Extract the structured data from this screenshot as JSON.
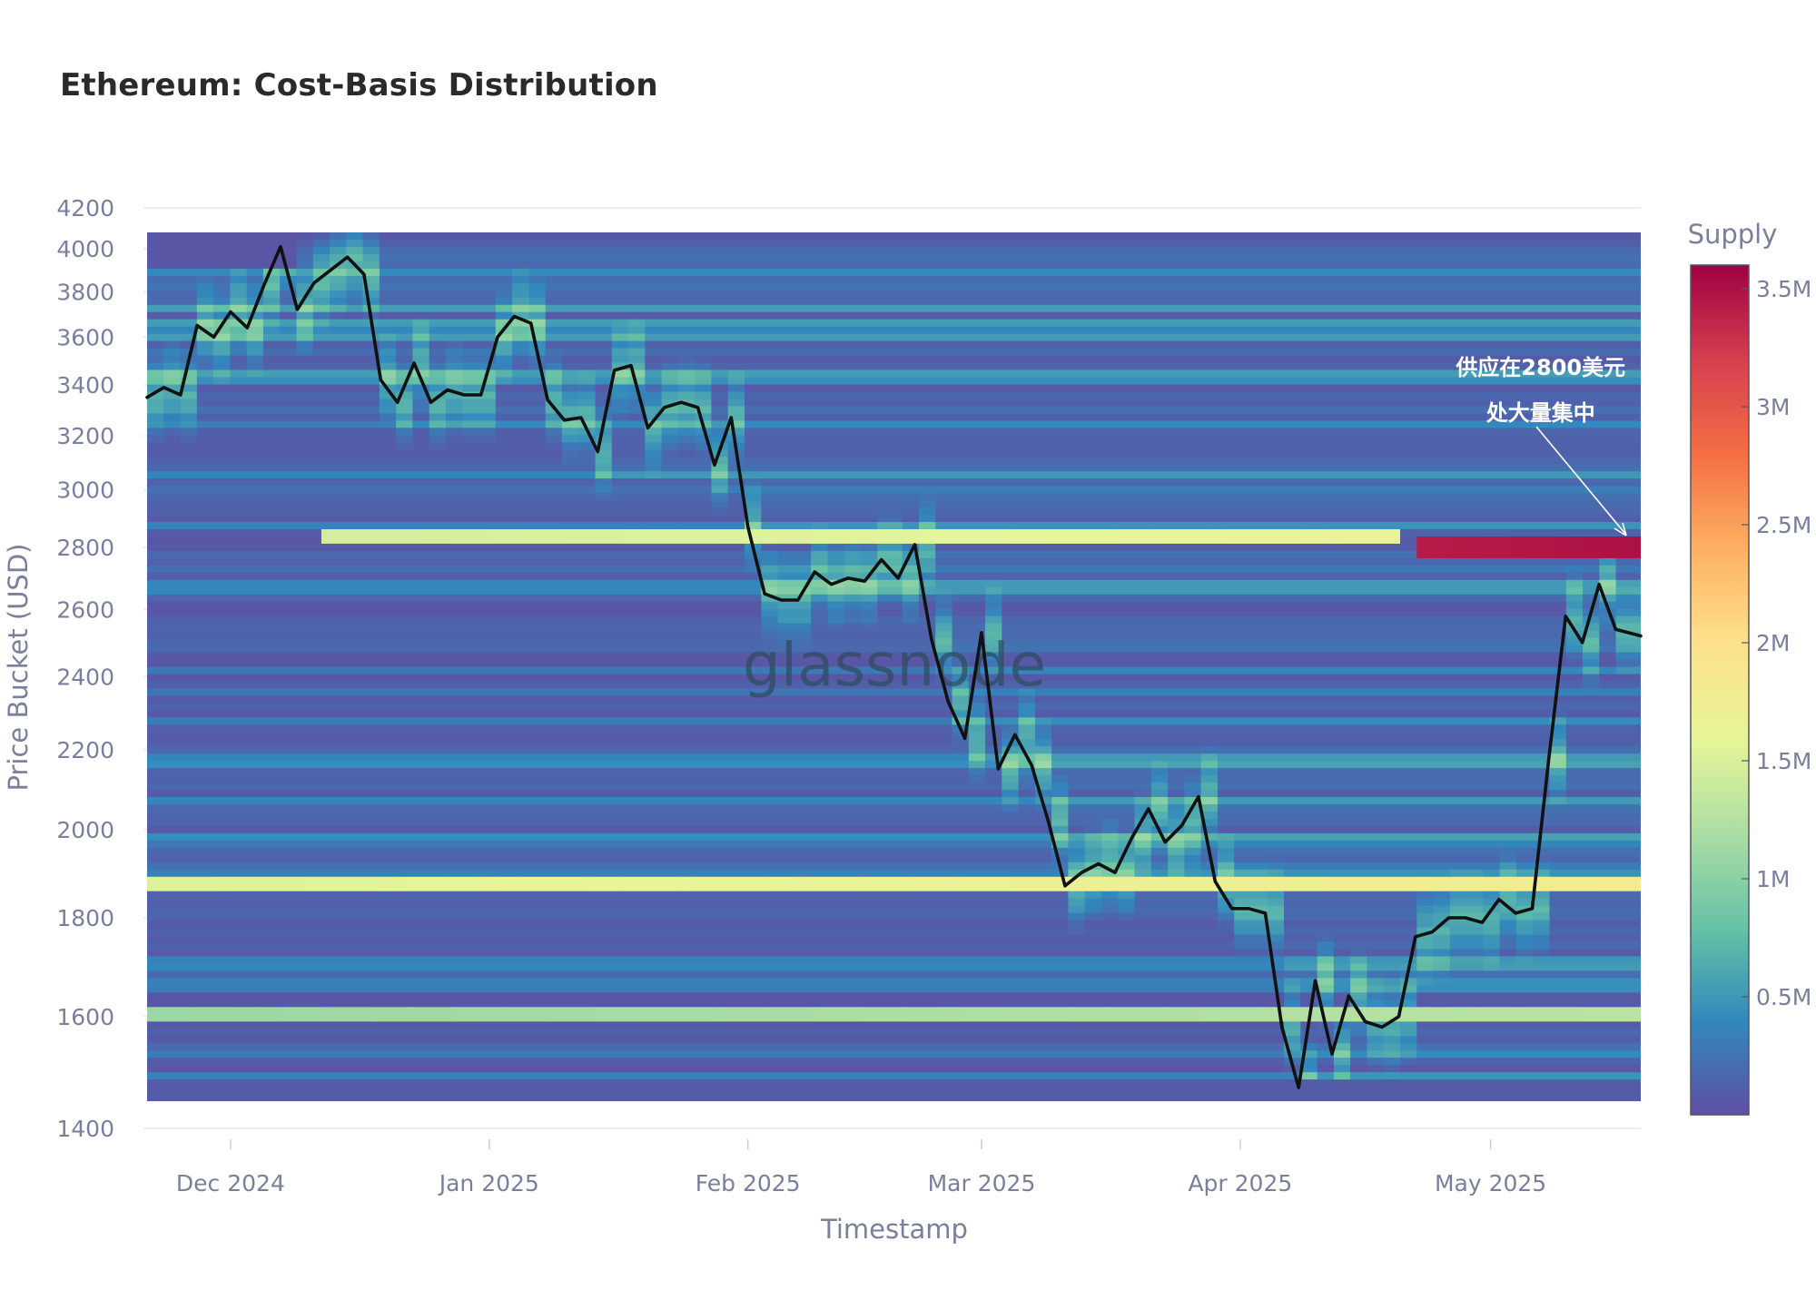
{
  "chart_data": {
    "type": "heatmap",
    "title": "Ethereum: Cost-Basis Distribution",
    "xlabel": "Timestamp",
    "ylabel": "Price Bucket (USD)",
    "y_scale": "log",
    "ylim": [
      1400,
      4200
    ],
    "x_range": [
      "2024-11-21",
      "2025-05-19"
    ],
    "y_ticks": [
      1400,
      1600,
      1800,
      2000,
      2200,
      2400,
      2600,
      2800,
      3000,
      3200,
      3400,
      3600,
      3800,
      4000,
      4200
    ],
    "x_ticks": [
      {
        "date": "2024-12-01",
        "label": "Dec 2024"
      },
      {
        "date": "2025-01-01",
        "label": "Jan 2025"
      },
      {
        "date": "2025-02-01",
        "label": "Feb 2025"
      },
      {
        "date": "2025-03-01",
        "label": "Mar 2025"
      },
      {
        "date": "2025-04-01",
        "label": "Apr 2025"
      },
      {
        "date": "2025-05-01",
        "label": "May 2025"
      }
    ],
    "colorbar": {
      "title": "Supply",
      "colorscale": "Spectral",
      "range": [
        0,
        3600000
      ],
      "ticks": [
        {
          "value": 500000,
          "label": "0.5M"
        },
        {
          "value": 1000000,
          "label": "1M"
        },
        {
          "value": 1500000,
          "label": "1.5M"
        },
        {
          "value": 2000000,
          "label": "2M"
        },
        {
          "value": 2500000,
          "label": "2.5M"
        },
        {
          "value": 3000000,
          "label": "3M"
        },
        {
          "value": 3500000,
          "label": "3.5M"
        }
      ],
      "colors": [
        "#5e4fa2",
        "#3288bd",
        "#66c2a5",
        "#abdda4",
        "#e6f598",
        "#fee08b",
        "#fdae61",
        "#f46d43",
        "#d53e4f",
        "#9e0142"
      ]
    },
    "heatmap_notable_bands": [
      {
        "price": 1880,
        "supply": 1800000,
        "date_from": "2024-11-21",
        "date_to": "2025-05-19"
      },
      {
        "price": 2800,
        "supply": 3500000,
        "date_from": "2025-04-22",
        "date_to": "2025-05-19"
      },
      {
        "price": 2830,
        "supply": 1700000,
        "date_from": "2024-12-12",
        "date_to": "2025-04-20"
      },
      {
        "price": 1600,
        "supply": 1300000,
        "date_from": "2024-11-21",
        "date_to": "2025-05-19"
      }
    ],
    "series": [
      {
        "type": "line",
        "color": "#111111",
        "x": [
          "2024-11-21",
          "2024-11-23",
          "2024-11-25",
          "2024-11-27",
          "2024-11-29",
          "2024-12-01",
          "2024-12-03",
          "2024-12-05",
          "2024-12-07",
          "2024-12-09",
          "2024-12-11",
          "2024-12-13",
          "2024-12-15",
          "2024-12-17",
          "2024-12-19",
          "2024-12-21",
          "2024-12-23",
          "2024-12-25",
          "2024-12-27",
          "2024-12-29",
          "2024-12-31",
          "2025-01-02",
          "2025-01-04",
          "2025-01-06",
          "2025-01-08",
          "2025-01-10",
          "2025-01-12",
          "2025-01-14",
          "2025-01-16",
          "2025-01-18",
          "2025-01-20",
          "2025-01-22",
          "2025-01-24",
          "2025-01-26",
          "2025-01-28",
          "2025-01-30",
          "2025-02-01",
          "2025-02-03",
          "2025-02-05",
          "2025-02-07",
          "2025-02-09",
          "2025-02-11",
          "2025-02-13",
          "2025-02-15",
          "2025-02-17",
          "2025-02-19",
          "2025-02-21",
          "2025-02-23",
          "2025-02-25",
          "2025-02-27",
          "2025-03-01",
          "2025-03-03",
          "2025-03-05",
          "2025-03-07",
          "2025-03-09",
          "2025-03-11",
          "2025-03-13",
          "2025-03-15",
          "2025-03-17",
          "2025-03-19",
          "2025-03-21",
          "2025-03-23",
          "2025-03-25",
          "2025-03-27",
          "2025-03-29",
          "2025-03-31",
          "2025-04-02",
          "2025-04-04",
          "2025-04-06",
          "2025-04-08",
          "2025-04-10",
          "2025-04-12",
          "2025-04-14",
          "2025-04-16",
          "2025-04-18",
          "2025-04-20",
          "2025-04-22",
          "2025-04-24",
          "2025-04-26",
          "2025-04-28",
          "2025-04-30",
          "2025-05-02",
          "2025-05-04",
          "2025-05-06",
          "2025-05-08",
          "2025-05-10",
          "2025-05-12",
          "2025-05-14",
          "2025-05-16",
          "2025-05-19"
        ],
        "y": [
          3350,
          3390,
          3360,
          3650,
          3600,
          3710,
          3640,
          3830,
          4010,
          3720,
          3840,
          3900,
          3960,
          3880,
          3420,
          3330,
          3490,
          3330,
          3380,
          3360,
          3360,
          3600,
          3690,
          3660,
          3340,
          3260,
          3270,
          3140,
          3460,
          3480,
          3230,
          3310,
          3330,
          3310,
          3090,
          3270,
          2870,
          2650,
          2630,
          2630,
          2720,
          2680,
          2700,
          2690,
          2760,
          2700,
          2810,
          2510,
          2330,
          2230,
          2530,
          2150,
          2240,
          2160,
          2020,
          1870,
          1900,
          1920,
          1900,
          1980,
          2050,
          1970,
          2010,
          2080,
          1880,
          1820,
          1820,
          1810,
          1580,
          1470,
          1670,
          1530,
          1640,
          1590,
          1580,
          1600,
          1760,
          1770,
          1800,
          1800,
          1790,
          1840,
          1810,
          1820,
          2180,
          2580,
          2500,
          2680,
          2540,
          2520
        ]
      }
    ],
    "annotations": [
      {
        "text": "供应在2800美元",
        "date": "2025-05-07",
        "price": 3440
      },
      {
        "text": "处大量集中",
        "date": "2025-05-07",
        "price": 3260
      }
    ],
    "watermark": "glassnode",
    "legend": "colorbar-right",
    "grid": "horizontal"
  }
}
